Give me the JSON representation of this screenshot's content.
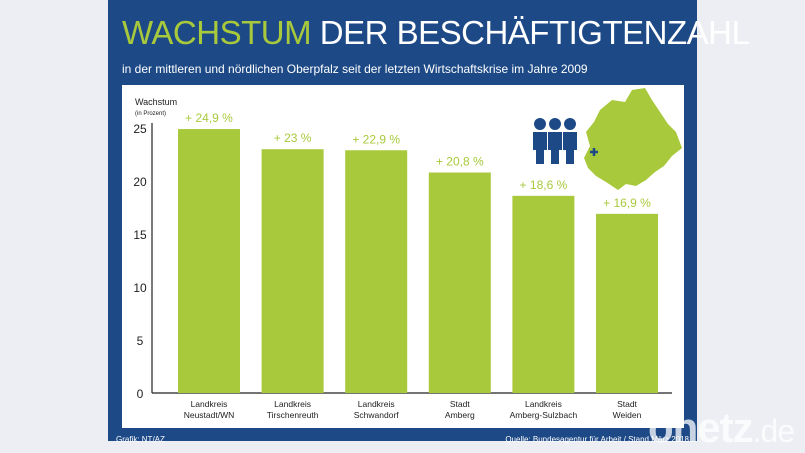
{
  "header": {
    "title_highlight": "WACHSTUM",
    "title_rest": " DER BESCHÄFTIGTENZAHL",
    "subtitle": "in der mittleren und nördlichen Oberpfalz seit der letzten Wirtschaftskrise im Jahre 2009"
  },
  "footer": {
    "credit": "Grafik: NT/AZ",
    "source": "Quelle: Bundesagentur für Arbeit / Stand März 2018"
  },
  "watermark": {
    "brand": "onetz",
    "tld": ".de"
  },
  "colors": {
    "panel": "#1d4a86",
    "bar": "#a9c93c",
    "accent": "#a9c93c",
    "icon": "#1d4a86"
  },
  "chart_data": {
    "type": "bar",
    "title": "WACHSTUM DER BESCHÄFTIGTENZAHL",
    "ylabel": "Wachstum",
    "ylabel_unit": "(in Prozent)",
    "ylim": [
      0,
      25
    ],
    "yticks": [
      0,
      5,
      10,
      15,
      20,
      25
    ],
    "grid": false,
    "categories": [
      [
        "Landkreis",
        "Neustadt/WN"
      ],
      [
        "Landkreis",
        "Tirschenreuth"
      ],
      [
        "Landkreis",
        "Schwandorf"
      ],
      [
        "Stadt",
        "Amberg"
      ],
      [
        "Landkreis",
        "Amberg-Sulzbach"
      ],
      [
        "Stadt",
        "Weiden"
      ]
    ],
    "values": [
      24.9,
      23,
      22.9,
      20.8,
      18.6,
      16.9
    ],
    "data_labels": [
      "+ 24,9 %",
      "+ 23 %",
      "+ 22,9 %",
      "+ 20,8 %",
      "+ 18,6 %",
      "+ 16,9 %"
    ]
  }
}
